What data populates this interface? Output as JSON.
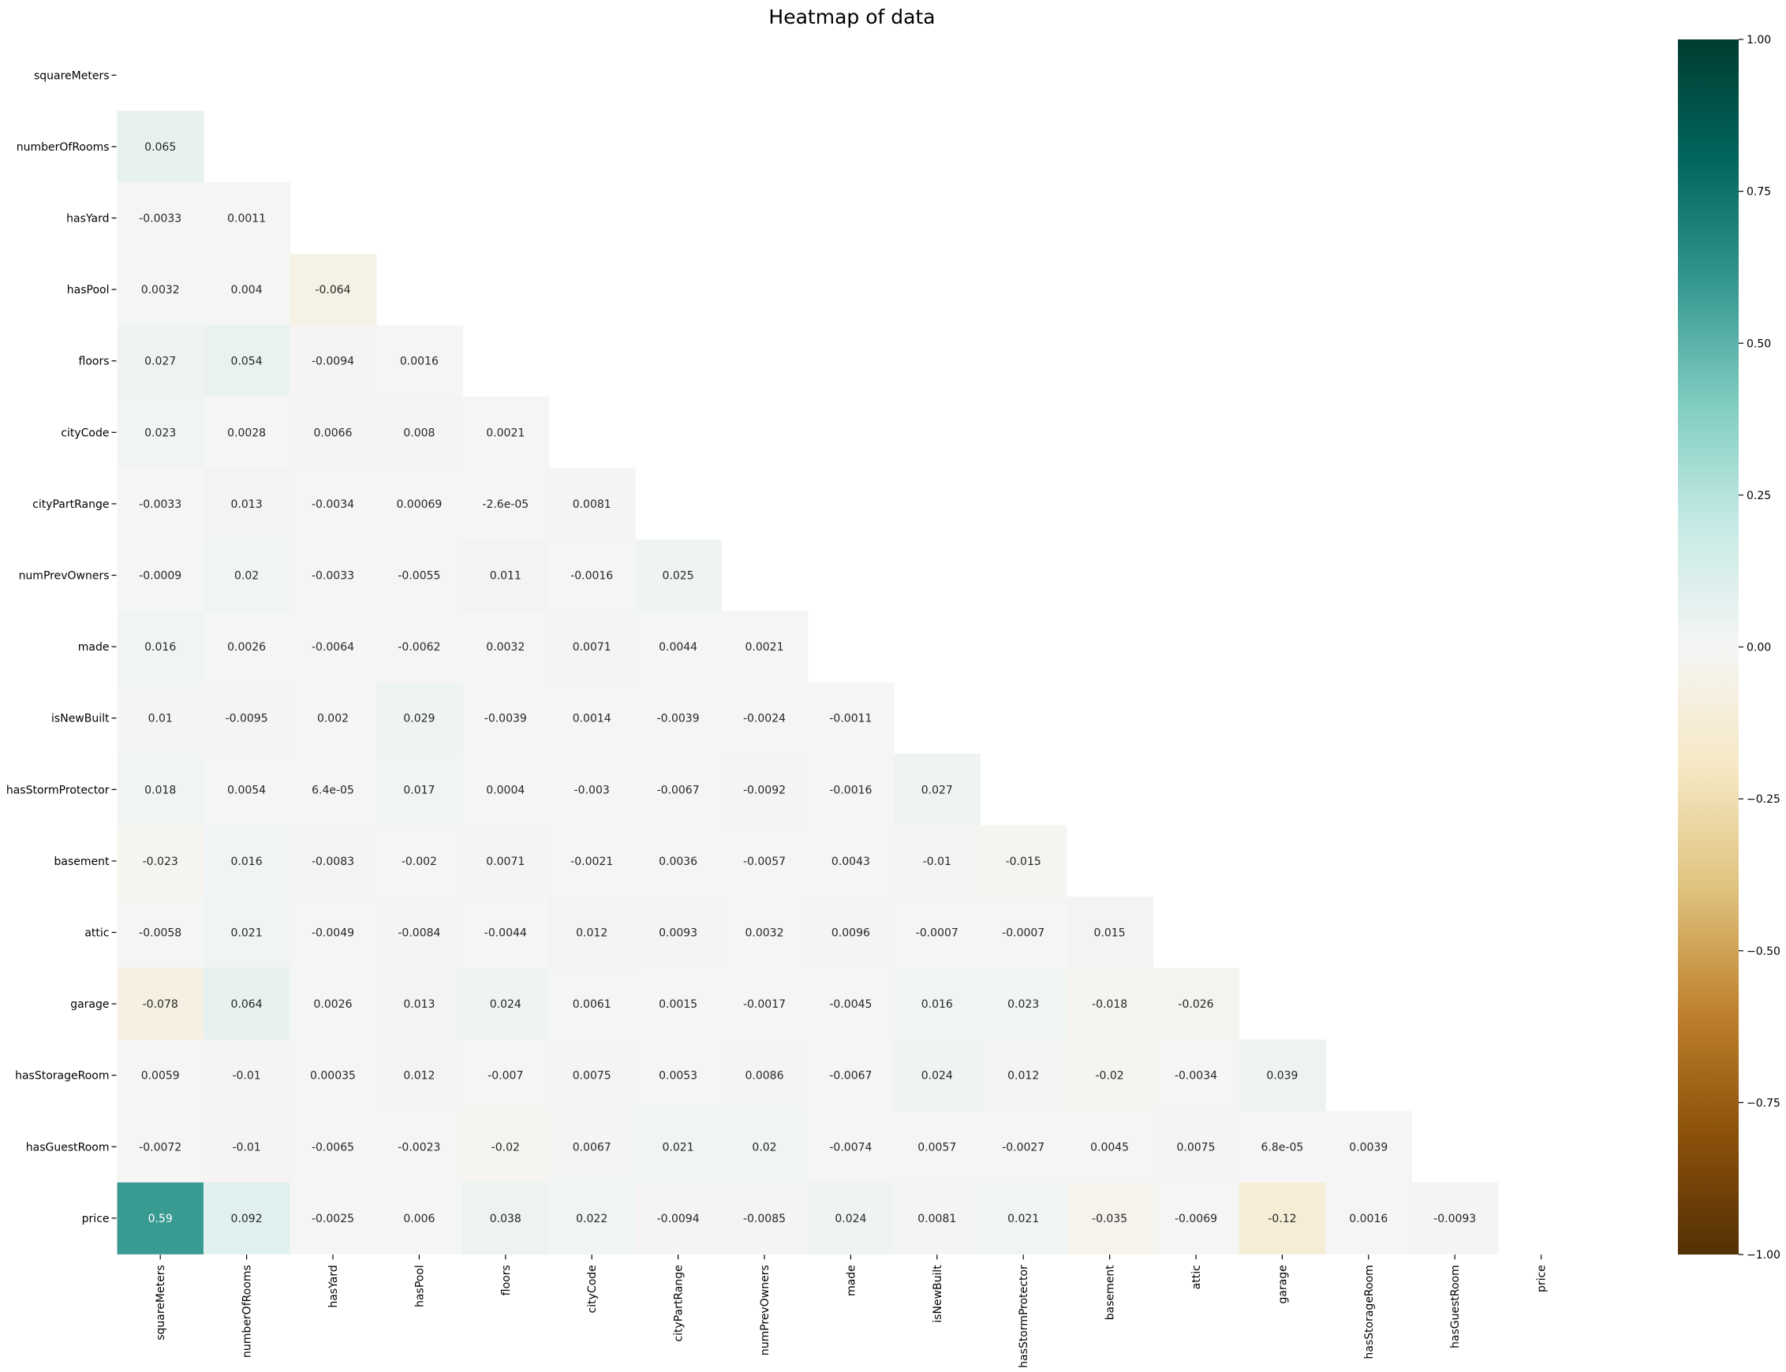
{
  "chart_data": {
    "type": "heatmap",
    "title": "Heatmap of  data",
    "variables": [
      "squareMeters",
      "numberOfRooms",
      "hasYard",
      "hasPool",
      "floors",
      "cityCode",
      "cityPartRange",
      "numPrevOwners",
      "made",
      "isNewBuilt",
      "hasStormProtector",
      "basement",
      "attic",
      "garage",
      "hasStorageRoom",
      "hasGuestRoom",
      "price"
    ],
    "mask": "upper triangle including diagonal",
    "lower_triangle_labels": [
      [],
      [
        "0.065"
      ],
      [
        "-0.0033",
        "0.0011"
      ],
      [
        "0.0032",
        "0.004",
        "-0.064"
      ],
      [
        "0.027",
        "0.054",
        "-0.0094",
        "0.0016"
      ],
      [
        "0.023",
        "0.0028",
        "0.0066",
        "0.008",
        "0.0021"
      ],
      [
        "-0.0033",
        "0.013",
        "-0.0034",
        "0.00069",
        "-2.6e-05",
        "0.0081"
      ],
      [
        "-0.0009",
        "0.02",
        "-0.0033",
        "-0.0055",
        "0.011",
        "-0.0016",
        "0.025"
      ],
      [
        "0.016",
        "0.0026",
        "-0.0064",
        "-0.0062",
        "0.0032",
        "0.0071",
        "0.0044",
        "0.0021"
      ],
      [
        "0.01",
        "-0.0095",
        "0.002",
        "0.029",
        "-0.0039",
        "0.0014",
        "-0.0039",
        "-0.0024",
        "-0.0011"
      ],
      [
        "0.018",
        "0.0054",
        "6.4e-05",
        "0.017",
        "0.0004",
        "-0.003",
        "-0.0067",
        "-0.0092",
        "-0.0016",
        "0.027"
      ],
      [
        "-0.023",
        "0.016",
        "-0.0083",
        "-0.002",
        "0.0071",
        "-0.0021",
        "0.0036",
        "-0.0057",
        "0.0043",
        "-0.01",
        "-0.015"
      ],
      [
        "-0.0058",
        "0.021",
        "-0.0049",
        "-0.0084",
        "-0.0044",
        "0.012",
        "0.0093",
        "0.0032",
        "0.0096",
        "-0.0007",
        "-0.0007",
        "0.015"
      ],
      [
        "-0.078",
        "0.064",
        "0.0026",
        "0.013",
        "0.024",
        "0.0061",
        "0.0015",
        "-0.0017",
        "-0.0045",
        "0.016",
        "0.023",
        "-0.018",
        "-0.026"
      ],
      [
        "0.0059",
        "-0.01",
        "0.00035",
        "0.012",
        "-0.007",
        "0.0075",
        "0.0053",
        "0.0086",
        "-0.0067",
        "0.024",
        "0.012",
        "-0.02",
        "-0.0034",
        "0.039"
      ],
      [
        "-0.0072",
        "-0.01",
        "-0.0065",
        "-0.0023",
        "-0.02",
        "0.0067",
        "0.021",
        "0.02",
        "-0.0074",
        "0.0057",
        "-0.0027",
        "0.0045",
        "0.0075",
        "6.8e-05",
        "0.0039"
      ],
      [
        "0.59",
        "0.092",
        "-0.0025",
        "0.006",
        "0.038",
        "0.022",
        "-0.0094",
        "-0.0085",
        "0.024",
        "0.0081",
        "0.021",
        "-0.035",
        "-0.0069",
        "-0.12",
        "0.0016",
        "-0.0093"
      ]
    ],
    "colorbar": {
      "range": [
        -1,
        1
      ],
      "ticks": [
        "1.00",
        "0.75",
        "0.50",
        "0.25",
        "0.00",
        "−0.25",
        "−0.50",
        "−0.75",
        "−1.00"
      ]
    },
    "colormap_stops": [
      "#543005",
      "#8c510a",
      "#bf812d",
      "#dfc27d",
      "#f6e8c3",
      "#f5f5f5",
      "#c7eae5",
      "#80cdc1",
      "#35978f",
      "#01665e",
      "#003c30"
    ]
  }
}
